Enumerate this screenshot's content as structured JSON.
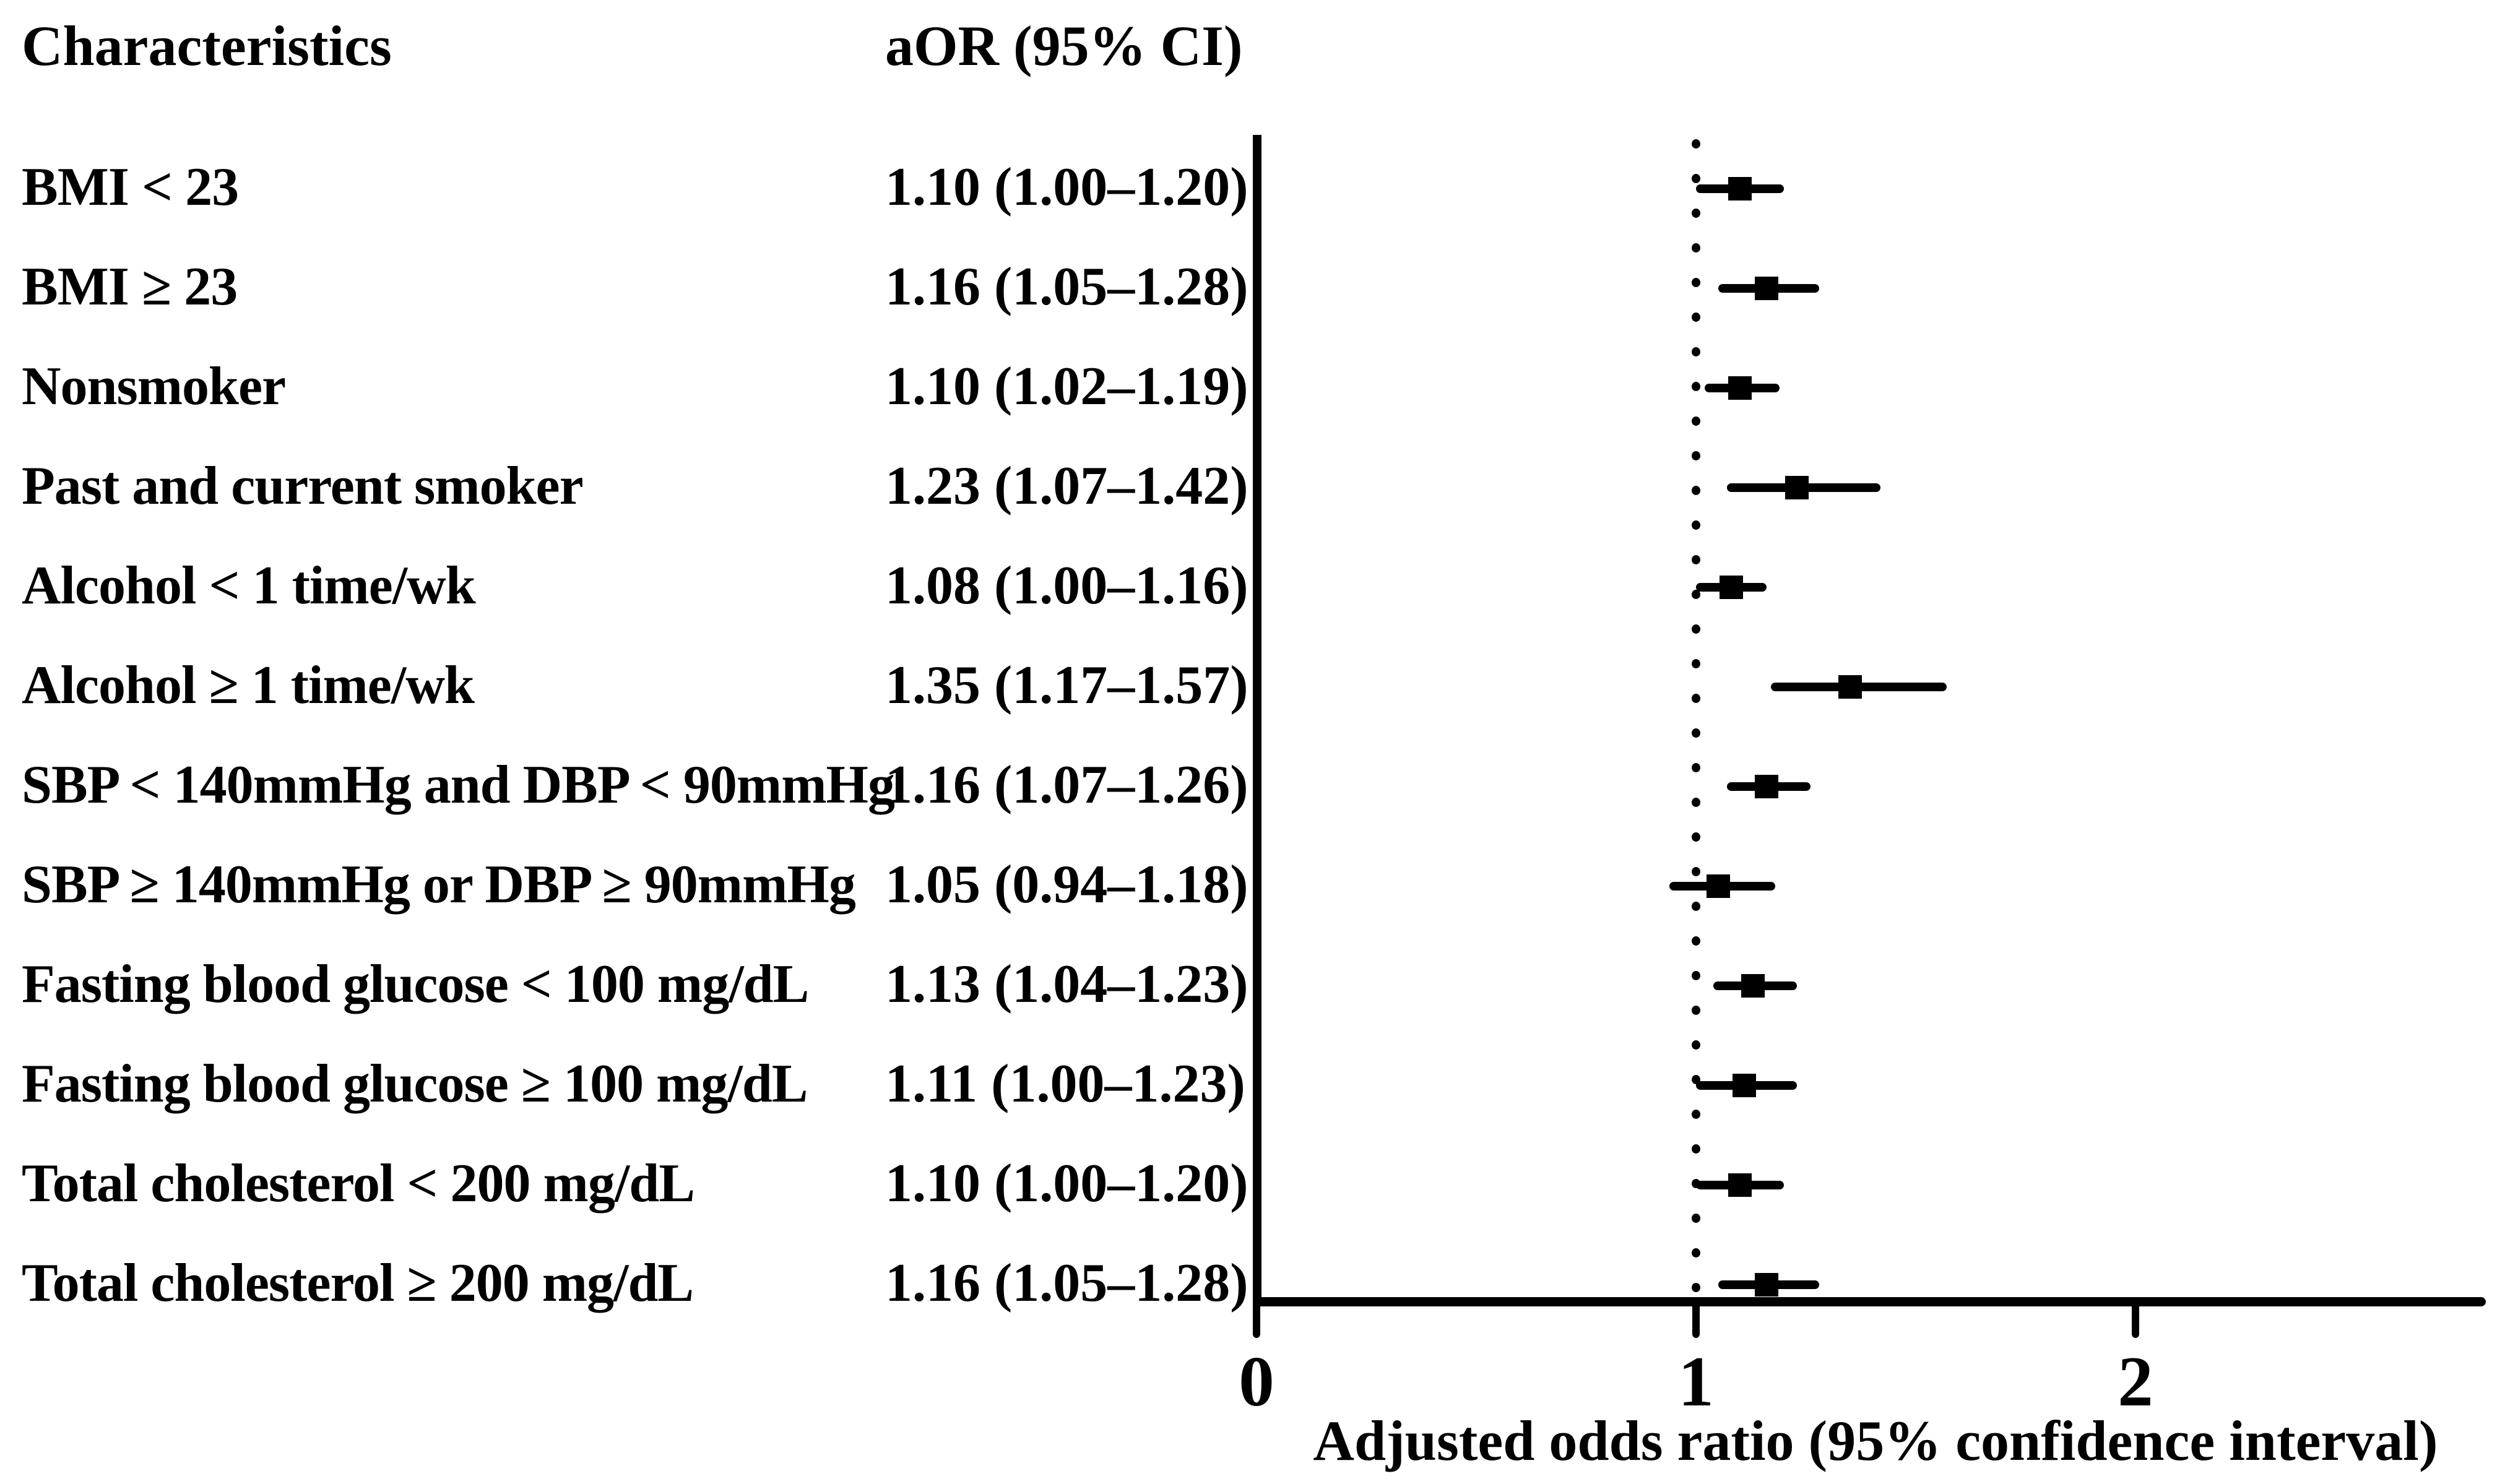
{
  "table": {
    "characteristics_header": "Characteristics",
    "aor_header": "aOR (95% CI)"
  },
  "chart_data": {
    "type": "scatter",
    "subtype": "forest-plot",
    "title": "",
    "xlabel": "Adjusted odds ratio (95% confidence interval)",
    "ylabel": "",
    "xlim": [
      0,
      2.8
    ],
    "x_tick_labels": [
      "0",
      "1",
      "2"
    ],
    "x_tick_values": [
      0,
      1,
      2
    ],
    "reference_line_x": 1,
    "grid": false,
    "legend_position": "none",
    "colors": {
      "ink": "#000000",
      "background": "#ffffff"
    },
    "rows": [
      {
        "label": "BMI < 23",
        "aor_text": "1.10 (1.00–1.20)",
        "aor": 1.1,
        "ci_low": 1.0,
        "ci_high": 1.2
      },
      {
        "label": "BMI ≥ 23",
        "aor_text": "1.16 (1.05–1.28)",
        "aor": 1.16,
        "ci_low": 1.05,
        "ci_high": 1.28
      },
      {
        "label": "Nonsmoker",
        "aor_text": "1.10 (1.02–1.19)",
        "aor": 1.1,
        "ci_low": 1.02,
        "ci_high": 1.19
      },
      {
        "label": "Past and current smoker",
        "aor_text": "1.23 (1.07–1.42)",
        "aor": 1.23,
        "ci_low": 1.07,
        "ci_high": 1.42
      },
      {
        "label": "Alcohol < 1 time/wk",
        "aor_text": "1.08 (1.00–1.16)",
        "aor": 1.08,
        "ci_low": 1.0,
        "ci_high": 1.16
      },
      {
        "label": "Alcohol ≥ 1 time/wk",
        "aor_text": "1.35 (1.17–1.57)",
        "aor": 1.35,
        "ci_low": 1.17,
        "ci_high": 1.57
      },
      {
        "label": "SBP < 140mmHg and DBP < 90mmHg",
        "aor_text": "1.16 (1.07–1.26)",
        "aor": 1.16,
        "ci_low": 1.07,
        "ci_high": 1.26
      },
      {
        "label": "SBP ≥ 140mmHg or DBP ≥ 90mmHg",
        "aor_text": "1.05 (0.94–1.18)",
        "aor": 1.05,
        "ci_low": 0.94,
        "ci_high": 1.18
      },
      {
        "label": "Fasting blood glucose < 100 mg/dL",
        "aor_text": "1.13 (1.04–1.23)",
        "aor": 1.13,
        "ci_low": 1.04,
        "ci_high": 1.23
      },
      {
        "label": "Fasting blood glucose ≥ 100 mg/dL",
        "aor_text": "1.11 (1.00–1.23)",
        "aor": 1.11,
        "ci_low": 1.0,
        "ci_high": 1.23
      },
      {
        "label": "Total cholesterol < 200 mg/dL",
        "aor_text": "1.10 (1.00–1.20)",
        "aor": 1.1,
        "ci_low": 1.0,
        "ci_high": 1.2
      },
      {
        "label": "Total cholesterol ≥ 200 mg/dL",
        "aor_text": "1.16 (1.05–1.28)",
        "aor": 1.16,
        "ci_low": 1.05,
        "ci_high": 1.28
      }
    ]
  }
}
